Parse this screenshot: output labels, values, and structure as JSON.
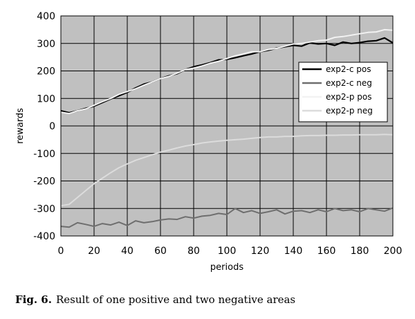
{
  "chart_data": {
    "type": "line",
    "title": "",
    "xlabel": "periods",
    "ylabel": "rewards",
    "xlim": [
      0,
      200
    ],
    "ylim": [
      -400,
      400
    ],
    "x_ticks": [
      0,
      20,
      40,
      60,
      80,
      100,
      120,
      140,
      160,
      180,
      200
    ],
    "y_ticks": [
      400,
      300,
      200,
      100,
      0,
      -100,
      -200,
      -300,
      -400
    ],
    "grid": true,
    "background": "#c0c0c0",
    "legend_position": "right-upper",
    "series": [
      {
        "name": "exp2-c pos",
        "color": "#000000",
        "width": 2.2,
        "points": [
          [
            0,
            55
          ],
          [
            5,
            48
          ],
          [
            10,
            55
          ],
          [
            15,
            64
          ],
          [
            20,
            72
          ],
          [
            25,
            85
          ],
          [
            30,
            98
          ],
          [
            35,
            110
          ],
          [
            40,
            122
          ],
          [
            45,
            138
          ],
          [
            50,
            152
          ],
          [
            55,
            160
          ],
          [
            60,
            172
          ],
          [
            65,
            182
          ],
          [
            70,
            190
          ],
          [
            75,
            205
          ],
          [
            80,
            215
          ],
          [
            85,
            222
          ],
          [
            90,
            230
          ],
          [
            95,
            240
          ],
          [
            100,
            242
          ],
          [
            105,
            248
          ],
          [
            110,
            255
          ],
          [
            115,
            262
          ],
          [
            120,
            270
          ],
          [
            125,
            275
          ],
          [
            130,
            283
          ],
          [
            135,
            288
          ],
          [
            140,
            293
          ],
          [
            145,
            290
          ],
          [
            150,
            302
          ],
          [
            155,
            298
          ],
          [
            160,
            300
          ],
          [
            165,
            293
          ],
          [
            170,
            305
          ],
          [
            175,
            300
          ],
          [
            180,
            303
          ],
          [
            185,
            308
          ],
          [
            190,
            310
          ],
          [
            195,
            320
          ],
          [
            200,
            302
          ]
        ]
      },
      {
        "name": "exp2-c neg",
        "color": "#6e6e6e",
        "width": 2.0,
        "points": [
          [
            0,
            -365
          ],
          [
            5,
            -368
          ],
          [
            10,
            -352
          ],
          [
            15,
            -358
          ],
          [
            20,
            -365
          ],
          [
            25,
            -355
          ],
          [
            30,
            -360
          ],
          [
            35,
            -350
          ],
          [
            40,
            -362
          ],
          [
            45,
            -345
          ],
          [
            50,
            -352
          ],
          [
            55,
            -348
          ],
          [
            60,
            -342
          ],
          [
            65,
            -338
          ],
          [
            70,
            -340
          ],
          [
            75,
            -330
          ],
          [
            80,
            -335
          ],
          [
            85,
            -328
          ],
          [
            90,
            -325
          ],
          [
            95,
            -318
          ],
          [
            100,
            -322
          ],
          [
            105,
            -300
          ],
          [
            110,
            -315
          ],
          [
            115,
            -308
          ],
          [
            120,
            -318
          ],
          [
            125,
            -312
          ],
          [
            130,
            -305
          ],
          [
            135,
            -320
          ],
          [
            140,
            -310
          ],
          [
            145,
            -308
          ],
          [
            150,
            -315
          ],
          [
            155,
            -305
          ],
          [
            160,
            -312
          ],
          [
            165,
            -300
          ],
          [
            170,
            -308
          ],
          [
            175,
            -305
          ],
          [
            180,
            -312
          ],
          [
            185,
            -300
          ],
          [
            190,
            -305
          ],
          [
            195,
            -310
          ],
          [
            200,
            -298
          ]
        ]
      },
      {
        "name": "exp2-p pos",
        "color": "#f2f2f2",
        "width": 2.0,
        "points": [
          [
            0,
            50
          ],
          [
            5,
            45
          ],
          [
            10,
            55
          ],
          [
            15,
            62
          ],
          [
            20,
            75
          ],
          [
            25,
            88
          ],
          [
            30,
            100
          ],
          [
            35,
            115
          ],
          [
            40,
            125
          ],
          [
            45,
            135
          ],
          [
            50,
            148
          ],
          [
            55,
            160
          ],
          [
            60,
            172
          ],
          [
            65,
            180
          ],
          [
            70,
            192
          ],
          [
            75,
            205
          ],
          [
            80,
            210
          ],
          [
            85,
            218
          ],
          [
            90,
            228
          ],
          [
            95,
            235
          ],
          [
            100,
            245
          ],
          [
            105,
            255
          ],
          [
            110,
            262
          ],
          [
            115,
            270
          ],
          [
            120,
            270
          ],
          [
            125,
            278
          ],
          [
            130,
            282
          ],
          [
            135,
            290
          ],
          [
            140,
            298
          ],
          [
            145,
            300
          ],
          [
            150,
            305
          ],
          [
            155,
            310
          ],
          [
            160,
            312
          ],
          [
            165,
            322
          ],
          [
            170,
            325
          ],
          [
            175,
            330
          ],
          [
            180,
            335
          ],
          [
            185,
            340
          ],
          [
            190,
            342
          ],
          [
            195,
            350
          ],
          [
            200,
            348
          ]
        ]
      },
      {
        "name": "exp2-p neg",
        "color": "#dcdcdc",
        "width": 2.0,
        "points": [
          [
            0,
            -290
          ],
          [
            5,
            -285
          ],
          [
            10,
            -260
          ],
          [
            15,
            -235
          ],
          [
            20,
            -210
          ],
          [
            25,
            -190
          ],
          [
            30,
            -170
          ],
          [
            35,
            -152
          ],
          [
            40,
            -138
          ],
          [
            45,
            -125
          ],
          [
            50,
            -115
          ],
          [
            55,
            -105
          ],
          [
            60,
            -95
          ],
          [
            65,
            -88
          ],
          [
            70,
            -80
          ],
          [
            75,
            -73
          ],
          [
            80,
            -68
          ],
          [
            85,
            -62
          ],
          [
            90,
            -58
          ],
          [
            95,
            -55
          ],
          [
            100,
            -52
          ],
          [
            105,
            -50
          ],
          [
            110,
            -48
          ],
          [
            115,
            -45
          ],
          [
            120,
            -42
          ],
          [
            125,
            -40
          ],
          [
            130,
            -40
          ],
          [
            135,
            -38
          ],
          [
            140,
            -38
          ],
          [
            145,
            -36
          ],
          [
            150,
            -35
          ],
          [
            155,
            -35
          ],
          [
            160,
            -34
          ],
          [
            165,
            -34
          ],
          [
            170,
            -33
          ],
          [
            175,
            -33
          ],
          [
            180,
            -32
          ],
          [
            185,
            -32
          ],
          [
            190,
            -32
          ],
          [
            195,
            -31
          ],
          [
            200,
            -32
          ]
        ]
      }
    ]
  },
  "caption": {
    "label": "Fig. 6.",
    "text": "Result of one positive and two negative areas"
  }
}
